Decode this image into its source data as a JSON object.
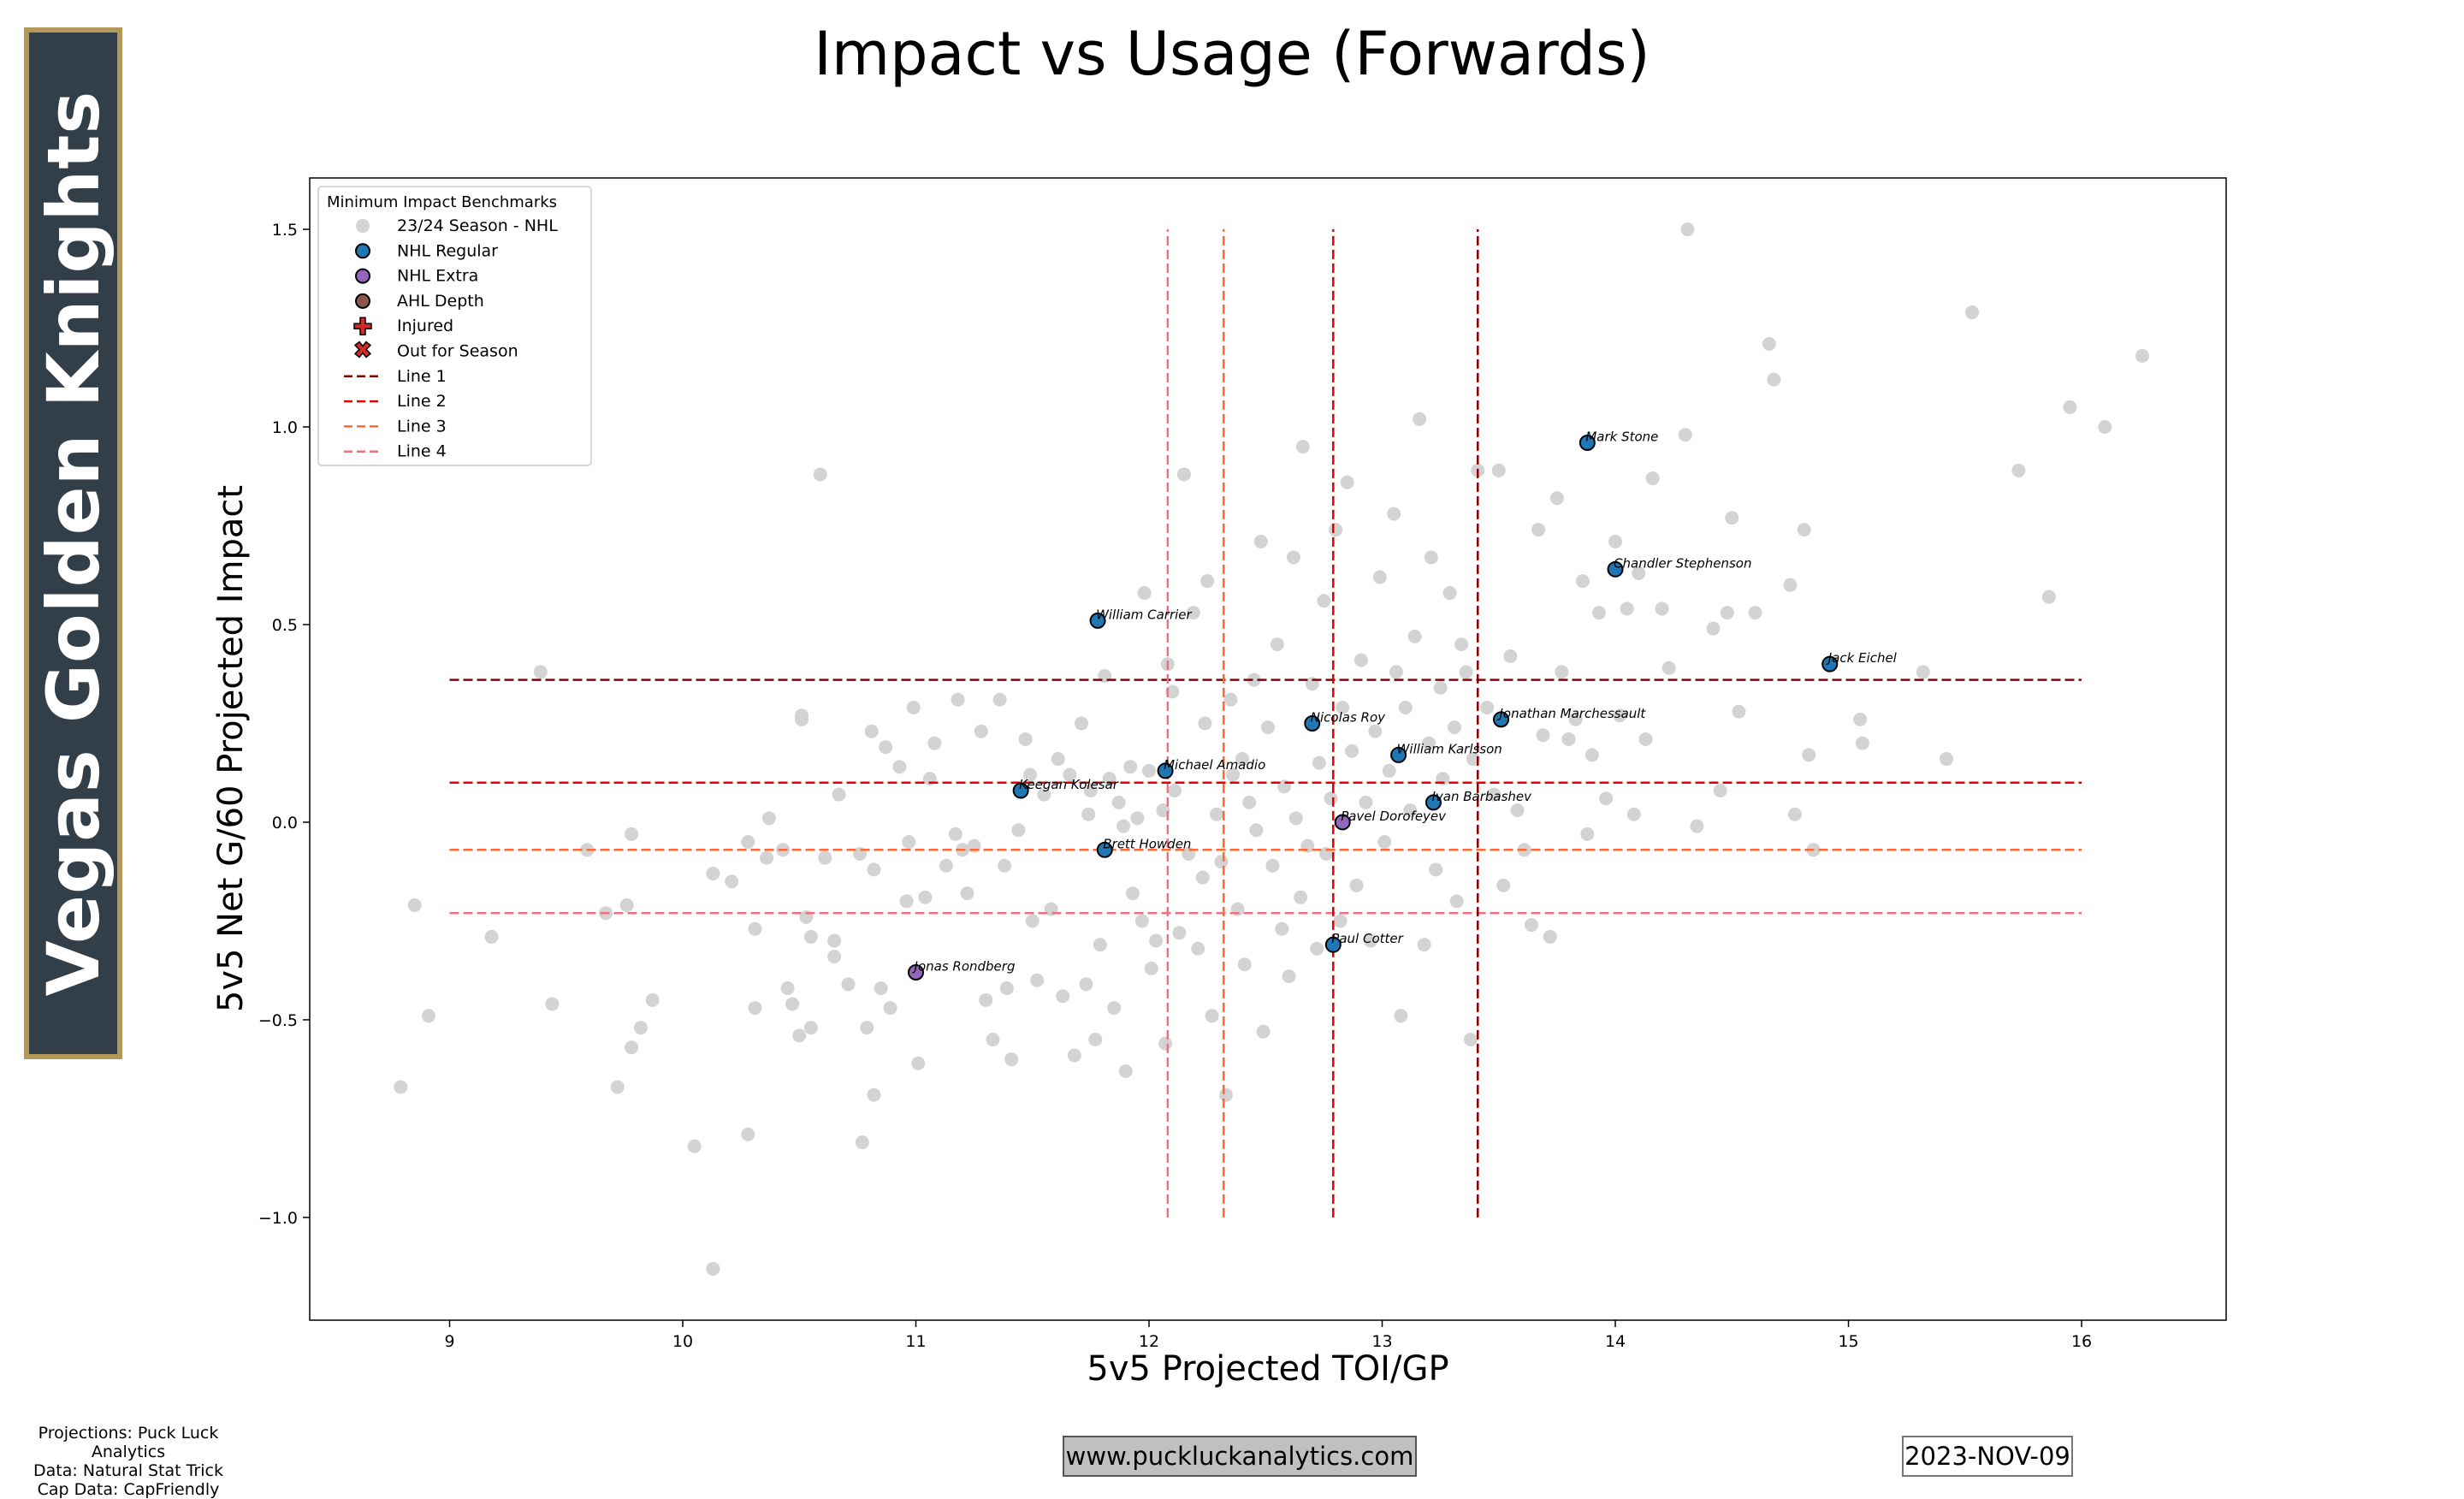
{
  "team": "Vegas Golden Knights",
  "colors": {
    "banner_bg": "#333f48",
    "banner_border": "#b4975a",
    "nhl_regular": "#1f77b4",
    "nhl_extra": "#9467bd",
    "ahl_depth": "#8c564b",
    "league_dot": "#d3d3d3",
    "injured": "#d62728"
  },
  "chart_data": {
    "type": "scatter",
    "title": "Impact vs Usage (Forwards)",
    "xlabel": "5v5 Projected TOI/GP",
    "ylabel": "5v5 Net G/60 Projected Impact",
    "xlim": [
      8.4,
      16.62
    ],
    "ylim": [
      -1.26,
      1.63
    ],
    "xticks": [
      9,
      10,
      11,
      12,
      13,
      14,
      15,
      16
    ],
    "yticks": [
      -1.0,
      -0.5,
      0.0,
      0.5,
      1.0,
      1.5
    ],
    "ytick_labels": [
      "−1.0",
      "−0.5",
      "0.0",
      "0.5",
      "1.0",
      "1.5"
    ],
    "legend": {
      "title": "Minimum Impact Benchmarks",
      "position": "top-left",
      "items": [
        {
          "label": "23/24 Season - NHL",
          "marker": "dot",
          "color": "#d3d3d3"
        },
        {
          "label": "NHL Regular",
          "marker": "dot",
          "color": "#1f77b4"
        },
        {
          "label": "NHL Extra",
          "marker": "dot",
          "color": "#9467bd"
        },
        {
          "label": "AHL Depth",
          "marker": "dot",
          "color": "#8c564b"
        },
        {
          "label": "Injured",
          "marker": "plus",
          "color": "#d62728"
        },
        {
          "label": "Out for Season",
          "marker": "x",
          "color": "#d62728"
        },
        {
          "label": "Line 1",
          "marker": "line",
          "color": "#8b0000"
        },
        {
          "label": "Line 2",
          "marker": "line",
          "color": "#e00000"
        },
        {
          "label": "Line 3",
          "marker": "line",
          "color": "#ff6a33"
        },
        {
          "label": "Line 4",
          "marker": "line",
          "color": "#f07080"
        }
      ]
    },
    "benchmarks": {
      "horizontal": [
        {
          "name": "Line 1",
          "y": 0.36,
          "color": "#8b0000",
          "x0": 9.0,
          "x1": 16.0
        },
        {
          "name": "Line 2",
          "y": 0.1,
          "color": "#e00000",
          "x0": 9.0,
          "x1": 16.0
        },
        {
          "name": "Line 3",
          "y": -0.07,
          "color": "#ff6a33",
          "x0": 9.0,
          "x1": 16.0
        },
        {
          "name": "Line 4",
          "y": -0.23,
          "color": "#f07080",
          "x0": 9.0,
          "x1": 16.0
        }
      ],
      "vertical": [
        {
          "name": "Line 1",
          "x": 13.41,
          "color": "#8b0000",
          "y0": -1.0,
          "y1": 1.5
        },
        {
          "name": "Line 2",
          "x": 12.79,
          "color": "#e00000",
          "y0": -1.0,
          "y1": 1.5
        },
        {
          "name": "Line 3",
          "x": 12.32,
          "color": "#ff6a33",
          "y0": -1.0,
          "y1": 1.5
        },
        {
          "name": "Line 4",
          "x": 12.08,
          "color": "#f07080",
          "y0": -1.0,
          "y1": 1.5
        }
      ]
    },
    "league_points": [
      [
        8.79,
        -0.67
      ],
      [
        8.85,
        -0.21
      ],
      [
        8.91,
        -0.49
      ],
      [
        9.18,
        -0.29
      ],
      [
        9.39,
        0.38
      ],
      [
        9.44,
        -0.46
      ],
      [
        9.59,
        -0.07
      ],
      [
        9.67,
        -0.23
      ],
      [
        9.72,
        -0.67
      ],
      [
        9.76,
        -0.21
      ],
      [
        9.78,
        -0.03
      ],
      [
        9.78,
        -0.57
      ],
      [
        9.82,
        -0.52
      ],
      [
        9.87,
        -0.45
      ],
      [
        10.05,
        -0.82
      ],
      [
        10.13,
        -0.13
      ],
      [
        10.13,
        -1.13
      ],
      [
        10.21,
        -0.15
      ],
      [
        10.28,
        -0.05
      ],
      [
        10.28,
        -0.79
      ],
      [
        10.31,
        -0.27
      ],
      [
        10.31,
        -0.47
      ],
      [
        10.36,
        -0.09
      ],
      [
        10.37,
        0.01
      ],
      [
        10.43,
        -0.07
      ],
      [
        10.45,
        -0.42
      ],
      [
        10.47,
        -0.46
      ],
      [
        10.51,
        0.27
      ],
      [
        10.51,
        0.26
      ],
      [
        10.5,
        -0.54
      ],
      [
        10.53,
        -0.24
      ],
      [
        10.55,
        -0.52
      ],
      [
        10.55,
        -0.29
      ],
      [
        10.59,
        0.88
      ],
      [
        10.61,
        -0.09
      ],
      [
        10.65,
        -0.3
      ],
      [
        10.65,
        -0.34
      ],
      [
        10.67,
        0.07
      ],
      [
        10.71,
        -0.41
      ],
      [
        10.76,
        -0.08
      ],
      [
        10.77,
        -0.81
      ],
      [
        10.79,
        -0.52
      ],
      [
        10.81,
        0.23
      ],
      [
        10.82,
        -0.69
      ],
      [
        10.82,
        -0.12
      ],
      [
        10.85,
        -0.42
      ],
      [
        10.87,
        0.19
      ],
      [
        10.89,
        -0.47
      ],
      [
        10.93,
        0.14
      ],
      [
        10.96,
        -0.2
      ],
      [
        10.97,
        -0.05
      ],
      [
        10.99,
        0.29
      ],
      [
        11.01,
        -0.61
      ],
      [
        11.04,
        -0.19
      ],
      [
        11.06,
        0.11
      ],
      [
        11.08,
        0.2
      ],
      [
        11.13,
        -0.11
      ],
      [
        11.17,
        -0.03
      ],
      [
        11.18,
        0.31
      ],
      [
        11.2,
        -0.07
      ],
      [
        11.22,
        -0.18
      ],
      [
        11.25,
        -0.06
      ],
      [
        11.28,
        0.23
      ],
      [
        11.3,
        -0.45
      ],
      [
        11.33,
        -0.55
      ],
      [
        11.36,
        0.31
      ],
      [
        11.38,
        -0.11
      ],
      [
        11.39,
        -0.42
      ],
      [
        11.41,
        -0.6
      ],
      [
        11.44,
        -0.02
      ],
      [
        11.47,
        0.21
      ],
      [
        11.49,
        0.12
      ],
      [
        11.5,
        -0.25
      ],
      [
        11.52,
        -0.4
      ],
      [
        11.55,
        0.07
      ],
      [
        11.58,
        -0.22
      ],
      [
        11.61,
        0.16
      ],
      [
        11.63,
        -0.44
      ],
      [
        11.66,
        0.12
      ],
      [
        11.68,
        -0.59
      ],
      [
        11.71,
        0.25
      ],
      [
        11.73,
        -0.41
      ],
      [
        11.74,
        0.02
      ],
      [
        11.75,
        0.08
      ],
      [
        11.77,
        -0.55
      ],
      [
        11.79,
        -0.31
      ],
      [
        11.81,
        0.37
      ],
      [
        11.83,
        0.11
      ],
      [
        11.85,
        -0.47
      ],
      [
        11.87,
        0.05
      ],
      [
        11.89,
        -0.01
      ],
      [
        11.9,
        -0.63
      ],
      [
        11.92,
        0.14
      ],
      [
        11.93,
        -0.18
      ],
      [
        11.95,
        0.01
      ],
      [
        11.97,
        -0.25
      ],
      [
        11.98,
        0.58
      ],
      [
        12.0,
        0.13
      ],
      [
        12.01,
        -0.37
      ],
      [
        12.03,
        -0.3
      ],
      [
        12.06,
        0.03
      ],
      [
        12.07,
        -0.56
      ],
      [
        12.08,
        0.4
      ],
      [
        12.1,
        0.33
      ],
      [
        12.11,
        0.08
      ],
      [
        12.13,
        -0.28
      ],
      [
        12.15,
        0.88
      ],
      [
        12.17,
        -0.08
      ],
      [
        12.19,
        0.53
      ],
      [
        12.21,
        -0.32
      ],
      [
        12.23,
        -0.14
      ],
      [
        12.24,
        0.25
      ],
      [
        12.25,
        0.61
      ],
      [
        12.27,
        -0.49
      ],
      [
        12.29,
        0.02
      ],
      [
        12.31,
        -0.1
      ],
      [
        12.33,
        -0.69
      ],
      [
        12.35,
        0.31
      ],
      [
        12.36,
        0.12
      ],
      [
        12.38,
        -0.22
      ],
      [
        12.4,
        0.16
      ],
      [
        12.41,
        -0.36
      ],
      [
        12.43,
        0.05
      ],
      [
        12.45,
        0.36
      ],
      [
        12.46,
        -0.02
      ],
      [
        12.48,
        0.71
      ],
      [
        12.49,
        -0.53
      ],
      [
        12.51,
        0.24
      ],
      [
        12.53,
        -0.11
      ],
      [
        12.55,
        0.45
      ],
      [
        12.57,
        -0.27
      ],
      [
        12.58,
        0.09
      ],
      [
        12.6,
        -0.39
      ],
      [
        12.62,
        0.67
      ],
      [
        12.63,
        0.01
      ],
      [
        12.65,
        -0.19
      ],
      [
        12.66,
        0.95
      ],
      [
        12.68,
        -0.06
      ],
      [
        12.7,
        0.35
      ],
      [
        12.72,
        -0.32
      ],
      [
        12.73,
        0.15
      ],
      [
        12.75,
        0.56
      ],
      [
        12.76,
        -0.08
      ],
      [
        12.78,
        0.06
      ],
      [
        12.8,
        0.74
      ],
      [
        12.82,
        -0.25
      ],
      [
        12.83,
        0.29
      ],
      [
        12.85,
        0.86
      ],
      [
        12.87,
        0.18
      ],
      [
        12.89,
        -0.16
      ],
      [
        12.91,
        0.41
      ],
      [
        12.93,
        0.05
      ],
      [
        12.95,
        -0.3
      ],
      [
        12.97,
        0.23
      ],
      [
        12.99,
        0.62
      ],
      [
        13.01,
        -0.05
      ],
      [
        13.03,
        0.13
      ],
      [
        13.05,
        0.78
      ],
      [
        13.06,
        0.38
      ],
      [
        13.08,
        -0.49
      ],
      [
        13.1,
        0.29
      ],
      [
        13.12,
        0.03
      ],
      [
        13.14,
        0.47
      ],
      [
        13.16,
        1.02
      ],
      [
        13.18,
        -0.31
      ],
      [
        13.2,
        0.2
      ],
      [
        13.21,
        0.67
      ],
      [
        13.23,
        -0.12
      ],
      [
        13.25,
        0.34
      ],
      [
        13.26,
        0.11
      ],
      [
        13.29,
        0.58
      ],
      [
        13.31,
        0.24
      ],
      [
        13.32,
        -0.2
      ],
      [
        13.34,
        0.45
      ],
      [
        13.36,
        0.38
      ],
      [
        13.38,
        -0.55
      ],
      [
        13.39,
        0.16
      ],
      [
        13.41,
        0.89
      ],
      [
        13.45,
        0.29
      ],
      [
        13.48,
        0.07
      ],
      [
        13.5,
        0.89
      ],
      [
        13.52,
        -0.16
      ],
      [
        13.55,
        0.42
      ],
      [
        13.58,
        0.03
      ],
      [
        13.61,
        -0.07
      ],
      [
        13.64,
        -0.26
      ],
      [
        13.67,
        0.74
      ],
      [
        13.69,
        0.22
      ],
      [
        13.72,
        -0.29
      ],
      [
        13.75,
        0.82
      ],
      [
        13.77,
        0.38
      ],
      [
        13.8,
        0.21
      ],
      [
        13.83,
        0.26
      ],
      [
        13.86,
        0.61
      ],
      [
        13.88,
        -0.03
      ],
      [
        13.9,
        0.17
      ],
      [
        13.93,
        0.53
      ],
      [
        13.96,
        0.06
      ],
      [
        14.0,
        0.71
      ],
      [
        14.02,
        0.27
      ],
      [
        14.05,
        0.54
      ],
      [
        14.08,
        0.02
      ],
      [
        14.1,
        0.63
      ],
      [
        14.13,
        0.21
      ],
      [
        14.16,
        0.87
      ],
      [
        14.2,
        0.54
      ],
      [
        14.23,
        0.39
      ],
      [
        14.3,
        0.98
      ],
      [
        14.31,
        1.5
      ],
      [
        14.35,
        -0.01
      ],
      [
        14.42,
        0.49
      ],
      [
        14.45,
        0.08
      ],
      [
        14.48,
        0.53
      ],
      [
        14.5,
        0.77
      ],
      [
        14.53,
        0.28
      ],
      [
        14.6,
        0.53
      ],
      [
        14.66,
        1.21
      ],
      [
        14.68,
        1.12
      ],
      [
        14.75,
        0.6
      ],
      [
        14.77,
        0.02
      ],
      [
        14.81,
        0.74
      ],
      [
        14.83,
        0.17
      ],
      [
        14.85,
        -0.07
      ],
      [
        15.05,
        0.26
      ],
      [
        15.06,
        0.2
      ],
      [
        15.32,
        0.38
      ],
      [
        15.42,
        0.16
      ],
      [
        15.53,
        1.29
      ],
      [
        15.73,
        0.89
      ],
      [
        15.86,
        0.57
      ],
      [
        15.95,
        1.05
      ],
      [
        16.1,
        1.0
      ],
      [
        16.26,
        1.18
      ]
    ],
    "players": [
      {
        "name": "Mark Stone",
        "x": 13.88,
        "y": 0.96,
        "group": "NHL Regular"
      },
      {
        "name": "Chandler Stephenson",
        "x": 14.0,
        "y": 0.64,
        "group": "NHL Regular"
      },
      {
        "name": "Jack Eichel",
        "x": 14.92,
        "y": 0.4,
        "group": "NHL Regular"
      },
      {
        "name": "William Carrier",
        "x": 11.78,
        "y": 0.51,
        "group": "NHL Regular"
      },
      {
        "name": "Jonathan Marchessault",
        "x": 13.51,
        "y": 0.26,
        "group": "NHL Regular"
      },
      {
        "name": "Nicolas Roy",
        "x": 12.7,
        "y": 0.25,
        "group": "NHL Regular"
      },
      {
        "name": "William Karlsson",
        "x": 13.07,
        "y": 0.17,
        "group": "NHL Regular"
      },
      {
        "name": "Michael Amadio",
        "x": 12.07,
        "y": 0.13,
        "group": "NHL Regular"
      },
      {
        "name": "Keegan Kolesar",
        "x": 11.45,
        "y": 0.08,
        "group": "NHL Regular"
      },
      {
        "name": "Ivan Barbashev",
        "x": 13.22,
        "y": 0.05,
        "group": "NHL Regular"
      },
      {
        "name": "Pavel Dorofeyev",
        "x": 12.83,
        "y": 0.0,
        "group": "NHL Extra"
      },
      {
        "name": "Brett Howden",
        "x": 11.81,
        "y": -0.07,
        "group": "NHL Regular"
      },
      {
        "name": "Paul Cotter",
        "x": 12.79,
        "y": -0.31,
        "group": "NHL Regular"
      },
      {
        "name": "Jonas Rondberg",
        "x": 11.0,
        "y": -0.38,
        "group": "NHL Extra"
      }
    ]
  },
  "footer": {
    "credits": [
      "Projections: Puck Luck Analytics",
      "Data: Natural Stat Trick",
      "Cap Data: CapFriendly"
    ],
    "website": "www.puckluckanalytics.com",
    "date": "2023-NOV-09"
  }
}
